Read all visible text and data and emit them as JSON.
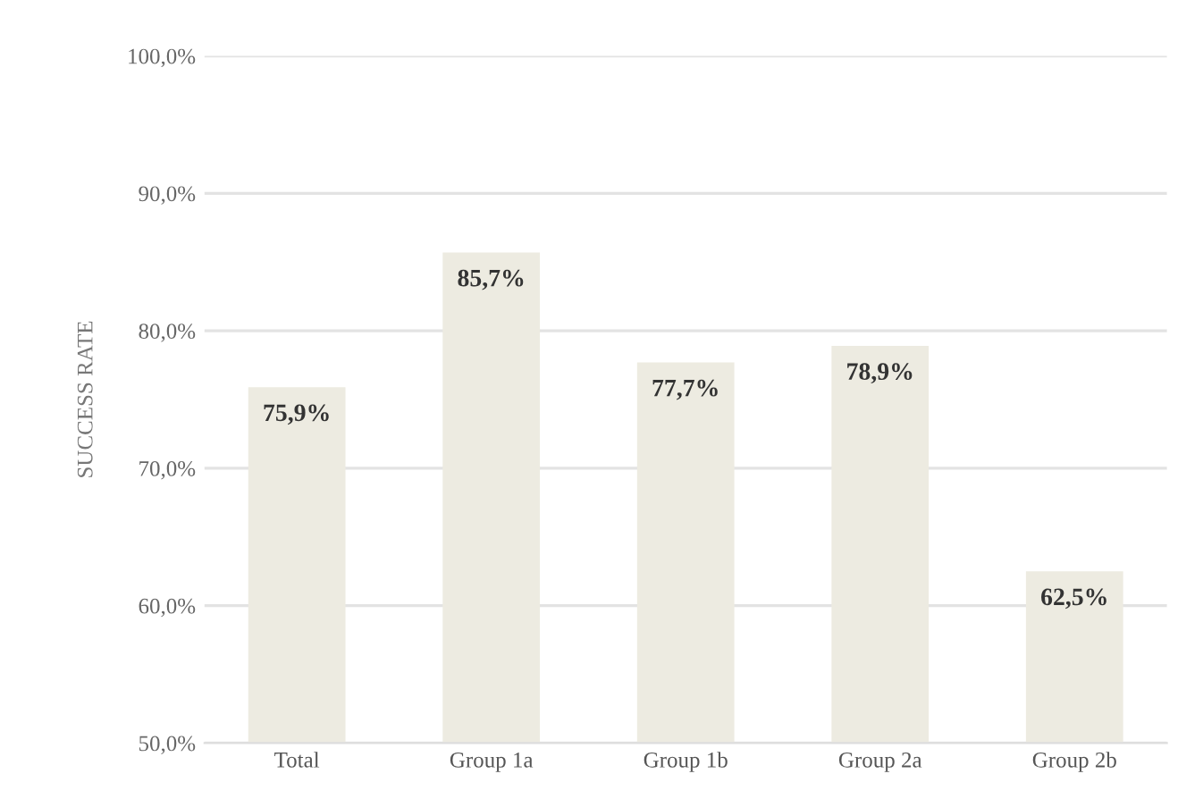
{
  "chart_data": {
    "type": "bar",
    "ylabel": "SUCCESS RATE",
    "categories": [
      "Total",
      "Group 1a",
      "Group 1b",
      "Group 2a",
      "Group 2b"
    ],
    "values": [
      75.9,
      85.7,
      77.7,
      78.9,
      62.5
    ],
    "value_labels": [
      "75,9%",
      "85,7%",
      "77,7%",
      "78,9%",
      "62,5%"
    ],
    "color": "#edebe1",
    "ylim": [
      50,
      100
    ],
    "yticks": [
      {
        "value": 50,
        "label": "50,0%"
      },
      {
        "value": 60,
        "label": "60,0%"
      },
      {
        "value": 70,
        "label": "70,0%"
      },
      {
        "value": 80,
        "label": "80,0%"
      },
      {
        "value": 90,
        "label": "90,0%"
      },
      {
        "value": 100,
        "label": "100,0%"
      }
    ],
    "grid": "y",
    "legend": false
  }
}
